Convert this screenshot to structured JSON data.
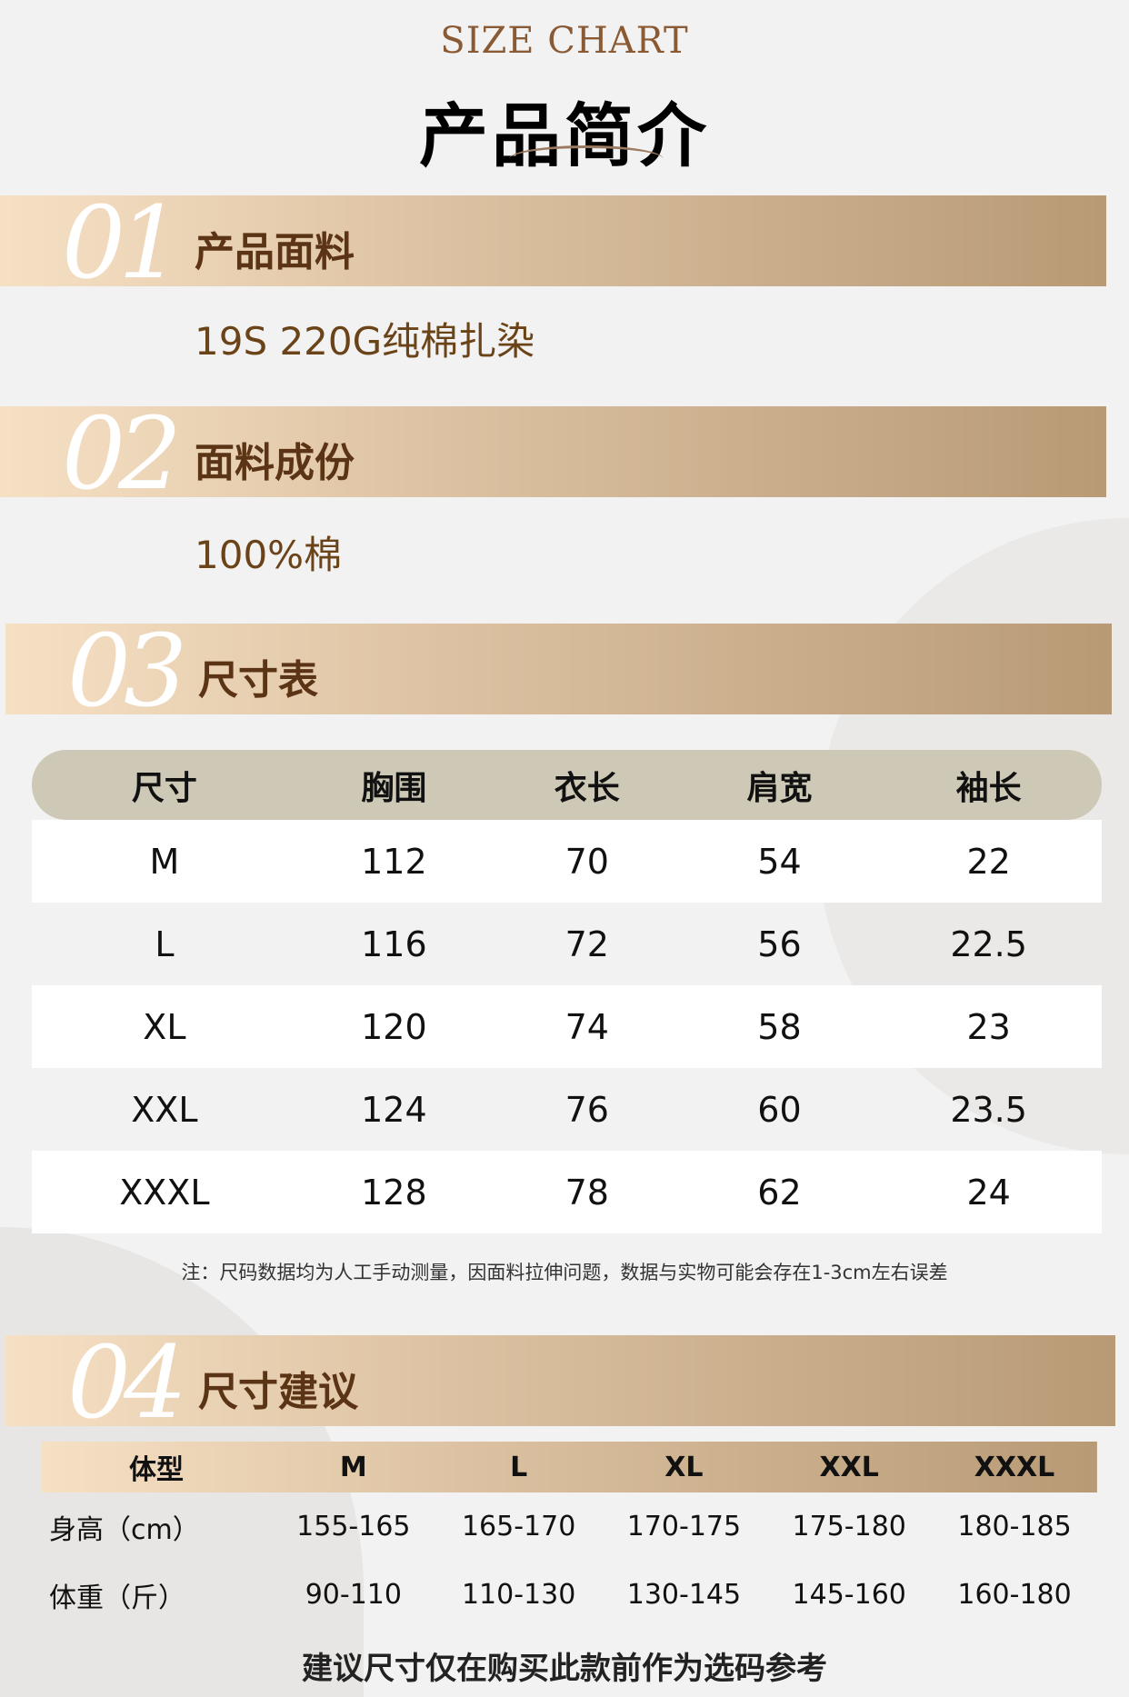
{
  "header": {
    "subtitle": "SIZE CHART",
    "title": "产品简介"
  },
  "sections": [
    {
      "number": "01",
      "title": "产品面料",
      "content": "19S 220G纯棉扎染"
    },
    {
      "number": "02",
      "title": "面料成份",
      "content": "100%棉"
    },
    {
      "number": "03",
      "title": "尺寸表"
    },
    {
      "number": "04",
      "title": "尺寸建议"
    }
  ],
  "size_table": {
    "headers": [
      "尺寸",
      "胸围",
      "衣长",
      "肩宽",
      "袖长"
    ],
    "rows": [
      [
        "M",
        "112",
        "70",
        "54",
        "22"
      ],
      [
        "L",
        "116",
        "72",
        "56",
        "22.5"
      ],
      [
        "XL",
        "120",
        "74",
        "58",
        "23"
      ],
      [
        "XXL",
        "124",
        "76",
        "60",
        "23.5"
      ],
      [
        "XXXL",
        "128",
        "78",
        "62",
        "24"
      ]
    ],
    "note": "注：尺码数据均为人工手动测量，因面料拉伸问题，数据与实物可能会存在1-3cm左右误差"
  },
  "suggest_table": {
    "headers": [
      "体型",
      "M",
      "L",
      "XL",
      "XXL",
      "XXXL"
    ],
    "rows": [
      [
        "身高（cm）",
        "155-165",
        "165-170",
        "170-175",
        "175-180",
        "180-185"
      ],
      [
        "体重（斤）",
        "90-110",
        "110-130",
        "130-145",
        "145-160",
        "160-180"
      ]
    ]
  },
  "footer": "建议尺寸仅在购买此款前作为选码参考",
  "colors": {
    "accent_text": "#5a3414",
    "band_start": "#f6e0c4",
    "band_end": "#b89a75",
    "table_header": "#cec9b7"
  }
}
